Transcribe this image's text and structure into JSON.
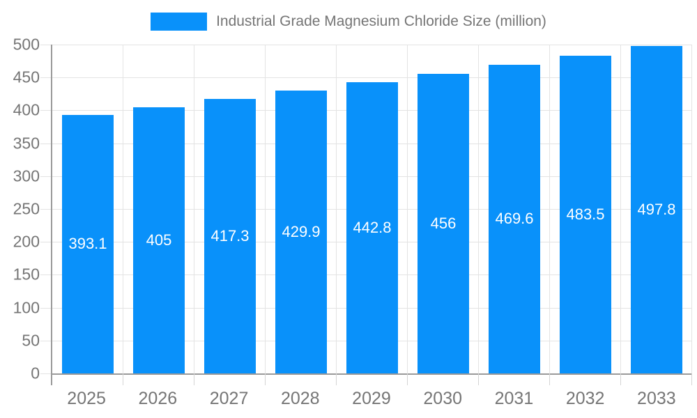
{
  "chart_data": {
    "type": "bar",
    "title": "Industrial Grade Magnesium Chloride Size (million)",
    "categories": [
      "2025",
      "2026",
      "2027",
      "2028",
      "2029",
      "2030",
      "2031",
      "2032",
      "2033"
    ],
    "values": [
      393.1,
      405,
      417.3,
      429.9,
      442.8,
      456,
      469.6,
      483.5,
      497.8
    ],
    "value_labels": [
      "393.1",
      "405",
      "417.3",
      "429.9",
      "442.8",
      "456",
      "469.6",
      "483.5",
      "497.8"
    ],
    "xlabel": "",
    "ylabel": "",
    "ylim": [
      0,
      500
    ],
    "ytick_step": 50,
    "ytick_labels": [
      "0",
      "50",
      "100",
      "150",
      "200",
      "250",
      "300",
      "350",
      "400",
      "450",
      "500"
    ],
    "grid": "horizontal and vertical boundary gridlines on",
    "legend_position": "top-center",
    "legend_entries": [
      "Industrial Grade Magnesium Chloride Size (million)"
    ],
    "bar_label_position": "centered inside bar, white text",
    "colors": {
      "bar": "#0991fa",
      "grid": "#e3e3e3",
      "axis": "#9a9a9a",
      "tick_label": "#757575",
      "bar_label": "#ffffff",
      "background": "#ffffff"
    }
  }
}
